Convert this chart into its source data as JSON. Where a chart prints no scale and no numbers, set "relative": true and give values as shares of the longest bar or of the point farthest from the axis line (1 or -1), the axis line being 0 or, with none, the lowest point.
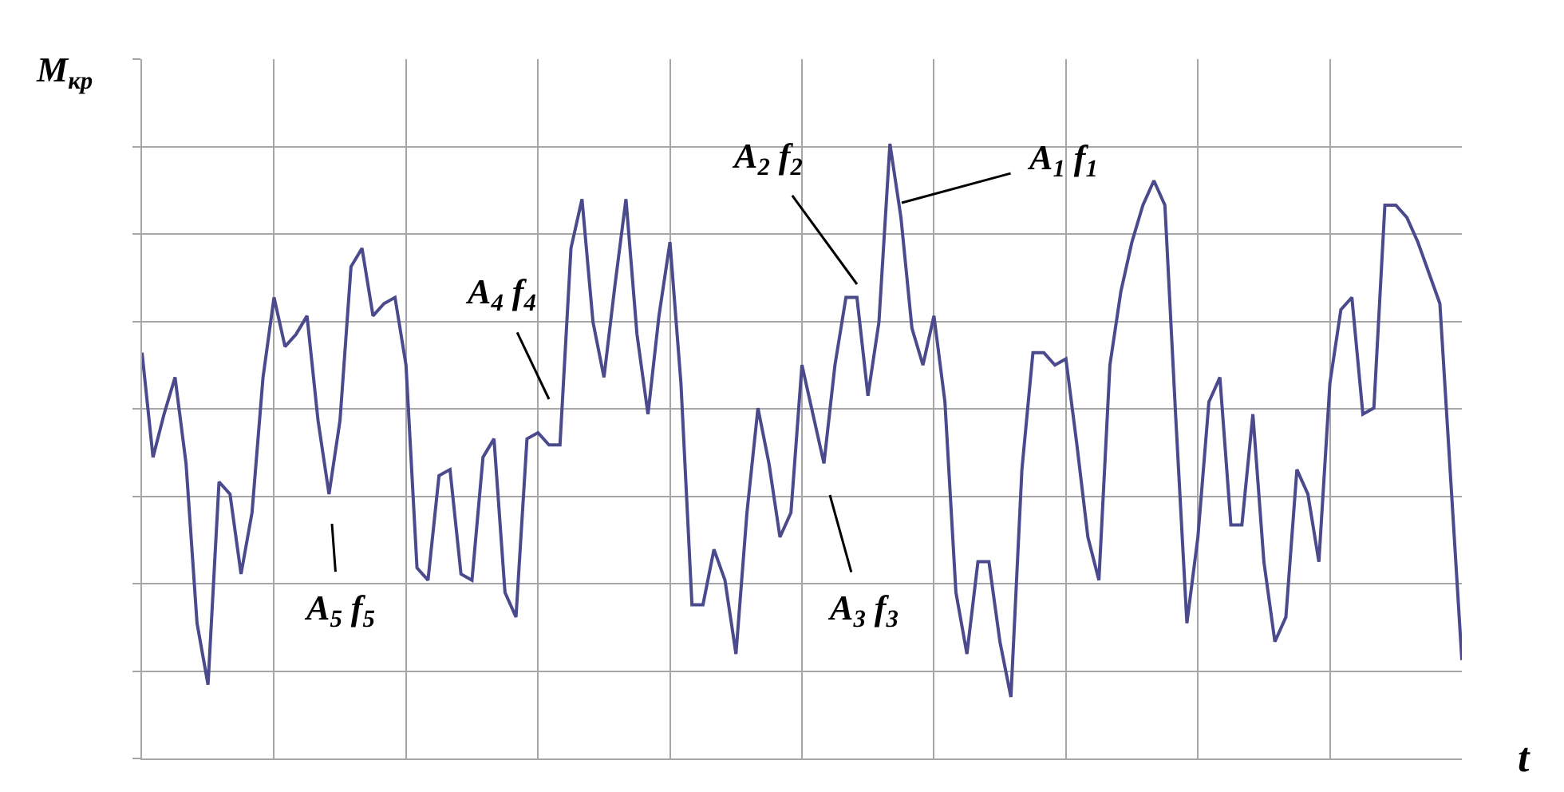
{
  "chart_data": {
    "type": "line",
    "relative": true,
    "xlabel": "t",
    "ylabel": "M$_{кр}$",
    "categories": [
      null,
      null,
      null,
      null,
      null,
      null,
      null,
      null,
      null,
      null,
      null,
      null,
      null,
      null,
      null,
      null,
      null,
      null,
      null,
      null,
      null,
      null,
      null,
      null,
      null,
      null,
      null,
      null,
      null,
      null,
      null,
      null,
      null,
      null,
      null,
      null,
      null,
      null,
      null,
      null,
      null,
      null,
      null,
      null,
      null,
      null,
      null,
      null,
      null,
      null,
      null,
      null,
      null,
      null,
      null,
      null,
      null,
      null,
      null,
      null,
      null,
      null,
      null,
      null,
      null,
      null,
      null,
      null,
      null,
      null,
      null,
      null,
      null,
      null,
      null,
      null,
      null,
      null,
      null,
      null,
      null,
      null,
      null,
      null,
      null,
      null,
      null,
      null,
      null,
      null,
      null,
      null,
      null,
      null,
      null,
      null,
      null,
      null,
      null,
      null,
      null,
      null,
      null,
      null,
      null,
      null,
      null,
      null,
      null,
      null,
      null,
      null,
      null,
      null,
      null,
      null,
      null,
      null,
      null,
      null,
      null
    ],
    "series": [
      {
        "color": "#4a4a8c",
        "values": [
          0.66,
          0.49,
          0.56,
          0.62,
          0.48,
          0.22,
          0.12,
          0.45,
          0.43,
          0.3,
          0.4,
          0.62,
          0.75,
          0.67,
          0.69,
          0.72,
          0.55,
          0.43,
          0.55,
          0.8,
          0.83,
          0.72,
          0.74,
          0.75,
          0.64,
          0.31,
          0.29,
          0.46,
          0.47,
          0.3,
          0.29,
          0.49,
          0.52,
          0.27,
          0.23,
          0.52,
          0.53,
          0.51,
          0.51,
          0.83,
          0.91,
          0.71,
          0.62,
          0.77,
          0.91,
          0.69,
          0.56,
          0.72,
          0.84,
          0.61,
          0.25,
          0.25,
          0.34,
          0.29,
          0.17,
          0.4,
          0.57,
          0.48,
          0.36,
          0.4,
          0.64,
          0.56,
          0.48,
          0.64,
          0.75,
          0.75,
          0.59,
          0.71,
          1,
          0.88,
          0.7,
          0.64,
          0.72,
          0.58,
          0.27,
          0.17,
          0.32,
          0.32,
          0.19,
          0.1,
          0.47,
          0.66,
          0.66,
          0.64,
          0.65,
          0.51,
          0.36,
          0.29,
          0.64,
          0.76,
          0.84,
          0.9,
          0.94,
          0.9,
          0.55,
          0.22,
          0.36,
          0.58,
          0.62,
          0.38,
          0.38,
          0.56,
          0.32,
          0.19,
          0.23,
          0.47,
          0.43,
          0.32,
          0.61,
          0.73,
          0.75,
          0.56,
          0.57,
          0.9,
          0.9,
          0.88,
          0.84,
          0.79,
          0.74,
          0.45,
          0.16
        ]
      }
    ],
    "annotations": [
      "A$_{1}$ f$_{1}$",
      "A$_{2}$ f$_{2}$",
      "A$_{3}$ f$_{3}$",
      "A$_{4}$ f$_{4}$",
      "A$_{5}$ f$_{5}$"
    ],
    "grid": true
  }
}
